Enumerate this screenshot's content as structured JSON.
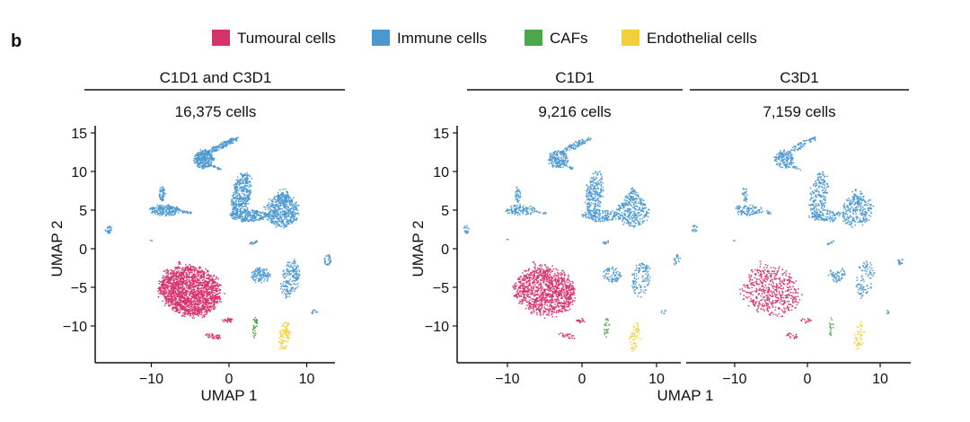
{
  "panel_label": "b",
  "legend": [
    {
      "label": "Tumoural cells",
      "color": "#d6336c"
    },
    {
      "label": "Immune cells",
      "color": "#4a98d0"
    },
    {
      "label": "CAFs",
      "color": "#4aa84a"
    },
    {
      "label": "Endothelial cells",
      "color": "#f2d03b"
    }
  ],
  "group_headers": {
    "combined": "C1D1 and C3D1",
    "c1d1": "C1D1",
    "c3d1": "C3D1"
  },
  "chart_data": [
    {
      "type": "scatter",
      "title": "16,375 cells",
      "xlabel": "UMAP 1",
      "ylabel": "UMAP 2",
      "xlim": [
        -17,
        14
      ],
      "ylim": [
        -14.5,
        16
      ],
      "xticks": [
        -10,
        0,
        10
      ],
      "yticks": [
        15,
        10,
        5,
        0,
        -5,
        -10
      ],
      "xtick_labels": [
        "−10",
        "0",
        "10"
      ],
      "ytick_labels": [
        "15",
        "10",
        "5",
        "0",
        "−5",
        "−10"
      ],
      "grid": false
    },
    {
      "type": "scatter",
      "title": "9,216 cells",
      "xlabel": "",
      "ylabel": "UMAP 2",
      "xlim": [
        -17,
        13.5
      ],
      "ylim": [
        -14.5,
        16
      ],
      "xticks": [
        -10,
        0,
        10
      ],
      "yticks": [
        15,
        10,
        5,
        0,
        -5,
        -10
      ],
      "xtick_labels": [
        "−10",
        "0",
        "10"
      ],
      "ytick_labels": [
        "15",
        "10",
        "5",
        "0",
        "−5",
        "−10"
      ],
      "grid": false
    },
    {
      "type": "scatter",
      "title": "7,159 cells",
      "xlabel": "",
      "ylabel": "",
      "xlim": [
        -16.5,
        14.5
      ],
      "ylim": [
        -14.5,
        16
      ],
      "xticks": [
        -10,
        0,
        10
      ],
      "yticks": [],
      "xtick_labels": [
        "−10",
        "0",
        "10"
      ],
      "ytick_labels": [],
      "grid": false
    }
  ],
  "shared_xlabel": "UMAP 1",
  "clusters": [
    {
      "cell_type": "Tumoural cells",
      "center": [
        -5,
        -5.5
      ],
      "spread": [
        4.1,
        3.2
      ],
      "angle": -15,
      "weight": 40
    },
    {
      "cell_type": "Tumoural cells",
      "center": [
        -0.2,
        -9.3
      ],
      "spread": [
        0.7,
        0.3
      ],
      "angle": 0,
      "weight": 0.6
    },
    {
      "cell_type": "Tumoural cells",
      "center": [
        -2,
        -11.3
      ],
      "spread": [
        1.1,
        0.35
      ],
      "angle": -10,
      "weight": 0.8
    },
    {
      "cell_type": "Tumoural cells",
      "center": [
        -6.4,
        -1.7
      ],
      "spread": [
        0.2,
        0.3
      ],
      "angle": 0,
      "weight": 0.1
    },
    {
      "cell_type": "Immune cells",
      "center": [
        -3.2,
        11.6
      ],
      "spread": [
        1.3,
        1.2
      ],
      "angle": 0,
      "weight": 6
    },
    {
      "cell_type": "Immune cells",
      "center": [
        -0.8,
        13.4
      ],
      "spread": [
        2.3,
        0.4
      ],
      "angle": 25,
      "weight": 3
    },
    {
      "cell_type": "Immune cells",
      "center": [
        -1.8,
        10.6
      ],
      "spread": [
        0.9,
        0.15
      ],
      "angle": -25,
      "weight": 0.5
    },
    {
      "cell_type": "Immune cells",
      "center": [
        -8.2,
        5.0
      ],
      "spread": [
        2.0,
        0.7
      ],
      "angle": 0,
      "weight": 4
    },
    {
      "cell_type": "Immune cells",
      "center": [
        -8.6,
        7.0
      ],
      "spread": [
        0.4,
        1.0
      ],
      "angle": 0,
      "weight": 1.2
    },
    {
      "cell_type": "Immune cells",
      "center": [
        -5.5,
        4.7
      ],
      "spread": [
        0.8,
        0.2
      ],
      "angle": -10,
      "weight": 0.4
    },
    {
      "cell_type": "Immune cells",
      "center": [
        -15.5,
        2.5
      ],
      "spread": [
        0.45,
        0.6
      ],
      "angle": 0,
      "weight": 0.6
    },
    {
      "cell_type": "Immune cells",
      "center": [
        -10,
        1.1
      ],
      "spread": [
        0.15,
        0.2
      ],
      "angle": 0,
      "weight": 0.05
    },
    {
      "cell_type": "Immune cells",
      "center": [
        1.6,
        7
      ],
      "spread": [
        1.2,
        3.0
      ],
      "angle": -10,
      "weight": 8
    },
    {
      "cell_type": "Immune cells",
      "center": [
        2.5,
        4.3
      ],
      "spread": [
        2.4,
        0.8
      ],
      "angle": 0,
      "weight": 5
    },
    {
      "cell_type": "Immune cells",
      "center": [
        6.8,
        4.9
      ],
      "spread": [
        2.2,
        2.1
      ],
      "angle": 0,
      "weight": 10
    },
    {
      "cell_type": "Immune cells",
      "center": [
        6.9,
        6.8
      ],
      "spread": [
        0.8,
        1.0
      ],
      "angle": 0,
      "weight": 1.5
    },
    {
      "cell_type": "Immune cells",
      "center": [
        3.2,
        0.8
      ],
      "spread": [
        0.6,
        0.2
      ],
      "angle": 15,
      "weight": 0.4
    },
    {
      "cell_type": "Immune cells",
      "center": [
        4,
        -3.4
      ],
      "spread": [
        1.3,
        1.0
      ],
      "angle": 0,
      "weight": 2.5
    },
    {
      "cell_type": "Immune cells",
      "center": [
        7.9,
        -3.9
      ],
      "spread": [
        1.2,
        2.4
      ],
      "angle": -10,
      "weight": 4
    },
    {
      "cell_type": "Immune cells",
      "center": [
        12.7,
        -1.5
      ],
      "spread": [
        0.5,
        0.7
      ],
      "angle": 0,
      "weight": 0.7
    },
    {
      "cell_type": "Immune cells",
      "center": [
        11,
        -8.2
      ],
      "spread": [
        0.35,
        0.3
      ],
      "angle": 0,
      "weight": 0.2
    },
    {
      "cell_type": "CAFs",
      "center": [
        3.3,
        -10.2
      ],
      "spread": [
        0.35,
        1.3
      ],
      "angle": -5,
      "weight": 0.8
    },
    {
      "cell_type": "Endothelial cells",
      "center": [
        7.1,
        -11.3
      ],
      "spread": [
        0.7,
        1.9
      ],
      "angle": -10,
      "weight": 2
    }
  ]
}
